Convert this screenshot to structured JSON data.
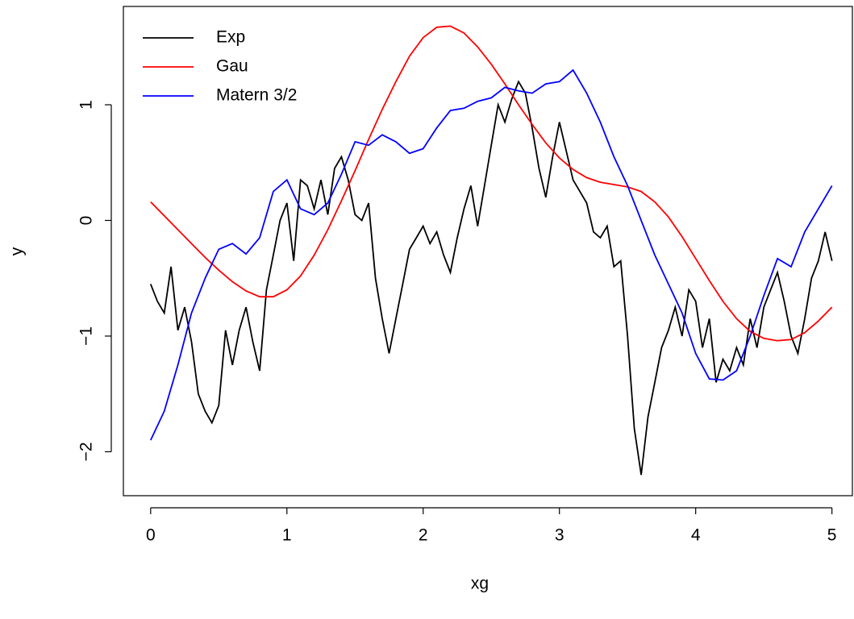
{
  "chart_data": {
    "type": "line",
    "x_label": "xg",
    "y_label": "y",
    "xlim": [
      -0.2,
      5.15
    ],
    "ylim": [
      -2.38,
      1.85
    ],
    "xticks": [
      0,
      1,
      2,
      3,
      4,
      5
    ],
    "yticks": [
      {
        "value": -2,
        "label": "−2"
      },
      {
        "value": -1,
        "label": "−1"
      },
      0,
      1
    ],
    "legend": "top-left",
    "series": [
      {
        "name": "Exp",
        "color": "#000000",
        "x": [
          0,
          0.05,
          0.1,
          0.15,
          0.2,
          0.25,
          0.3,
          0.35,
          0.4,
          0.45,
          0.5,
          0.55,
          0.6,
          0.65,
          0.7,
          0.75,
          0.8,
          0.85,
          0.9,
          0.95,
          1,
          1.05,
          1.1,
          1.15,
          1.2,
          1.25,
          1.3,
          1.35,
          1.4,
          1.45,
          1.5,
          1.55,
          1.6,
          1.65,
          1.7,
          1.75,
          1.8,
          1.85,
          1.9,
          1.95,
          2,
          2.05,
          2.1,
          2.15,
          2.2,
          2.25,
          2.3,
          2.35,
          2.4,
          2.45,
          2.5,
          2.55,
          2.6,
          2.65,
          2.7,
          2.75,
          2.8,
          2.85,
          2.9,
          2.95,
          3,
          3.05,
          3.1,
          3.15,
          3.2,
          3.25,
          3.3,
          3.35,
          3.4,
          3.45,
          3.5,
          3.55,
          3.6,
          3.65,
          3.7,
          3.75,
          3.8,
          3.85,
          3.9,
          3.95,
          4,
          4.05,
          4.1,
          4.15,
          4.2,
          4.25,
          4.3,
          4.35,
          4.4,
          4.45,
          4.5,
          4.55,
          4.6,
          4.65,
          4.7,
          4.75,
          4.8,
          4.85,
          4.9,
          4.95,
          5
        ],
        "values": [
          -0.55,
          -0.7,
          -0.8,
          -0.4,
          -0.95,
          -0.75,
          -1.05,
          -1.5,
          -1.65,
          -1.75,
          -1.6,
          -0.95,
          -1.25,
          -0.95,
          -0.75,
          -1.05,
          -1.3,
          -0.6,
          -0.3,
          0,
          0.15,
          -0.35,
          0.35,
          0.3,
          0.1,
          0.35,
          0.05,
          0.45,
          0.55,
          0.35,
          0.05,
          0,
          0.15,
          -0.5,
          -0.85,
          -1.15,
          -0.85,
          -0.55,
          -0.25,
          -0.15,
          -0.05,
          -0.2,
          -0.1,
          -0.3,
          -0.45,
          -0.15,
          0.1,
          0.3,
          -0.05,
          0.3,
          0.65,
          1,
          0.85,
          1.05,
          1.2,
          1.1,
          0.8,
          0.45,
          0.2,
          0.55,
          0.85,
          0.6,
          0.35,
          0.25,
          0.15,
          -0.1,
          -0.15,
          -0.05,
          -0.4,
          -0.35,
          -1,
          -1.8,
          -2.2,
          -1.7,
          -1.4,
          -1.1,
          -0.95,
          -0.75,
          -1,
          -0.6,
          -0.7,
          -1.1,
          -0.85,
          -1.4,
          -1.2,
          -1.3,
          -1.1,
          -1.25,
          -0.85,
          -1.1,
          -0.75,
          -0.6,
          -0.45,
          -0.7,
          -1,
          -1.15,
          -0.85,
          -0.5,
          -0.35,
          -0.1,
          -0.35
        ]
      },
      {
        "name": "Gau",
        "color": "#ff0000",
        "x": [
          0,
          0.1,
          0.2,
          0.3,
          0.4,
          0.5,
          0.6,
          0.7,
          0.8,
          0.9,
          1,
          1.1,
          1.2,
          1.3,
          1.4,
          1.5,
          1.6,
          1.7,
          1.8,
          1.9,
          2,
          2.1,
          2.2,
          2.3,
          2.4,
          2.5,
          2.6,
          2.7,
          2.8,
          2.9,
          3,
          3.1,
          3.2,
          3.3,
          3.4,
          3.5,
          3.6,
          3.7,
          3.8,
          3.9,
          4,
          4.1,
          4.2,
          4.3,
          4.4,
          4.5,
          4.6,
          4.7,
          4.8,
          4.9,
          5
        ],
        "values": [
          0.16,
          0.04,
          -0.08,
          -0.2,
          -0.32,
          -0.43,
          -0.53,
          -0.61,
          -0.66,
          -0.66,
          -0.6,
          -0.48,
          -0.3,
          -0.08,
          0.17,
          0.43,
          0.7,
          0.96,
          1.2,
          1.42,
          1.58,
          1.67,
          1.68,
          1.62,
          1.5,
          1.35,
          1.18,
          1,
          0.83,
          0.67,
          0.54,
          0.44,
          0.37,
          0.33,
          0.31,
          0.29,
          0.25,
          0.16,
          0.03,
          -0.14,
          -0.33,
          -0.52,
          -0.7,
          -0.85,
          -0.96,
          -1.02,
          -1.04,
          -1.03,
          -0.97,
          -0.87,
          -0.75
        ]
      },
      {
        "name": "Matern 3/2",
        "color": "#0000ff",
        "x": [
          0,
          0.1,
          0.2,
          0.3,
          0.4,
          0.5,
          0.6,
          0.7,
          0.8,
          0.9,
          1,
          1.1,
          1.2,
          1.3,
          1.4,
          1.5,
          1.6,
          1.7,
          1.8,
          1.9,
          2,
          2.1,
          2.2,
          2.3,
          2.4,
          2.5,
          2.6,
          2.7,
          2.8,
          2.9,
          3,
          3.1,
          3.2,
          3.3,
          3.4,
          3.5,
          3.6,
          3.7,
          3.8,
          3.9,
          4,
          4.1,
          4.2,
          4.3,
          4.4,
          4.5,
          4.6,
          4.7,
          4.8,
          4.9,
          5
        ],
        "values": [
          -1.9,
          -1.65,
          -1.25,
          -0.8,
          -0.5,
          -0.25,
          -0.2,
          -0.29,
          -0.15,
          0.25,
          0.35,
          0.1,
          0.05,
          0.15,
          0.4,
          0.68,
          0.65,
          0.74,
          0.68,
          0.58,
          0.62,
          0.8,
          0.95,
          0.97,
          1.03,
          1.06,
          1.15,
          1.12,
          1.1,
          1.18,
          1.2,
          1.3,
          1.1,
          0.85,
          0.55,
          0.3,
          0,
          -0.3,
          -0.55,
          -0.8,
          -1.15,
          -1.37,
          -1.38,
          -1.3,
          -1,
          -0.65,
          -0.33,
          -0.4,
          -0.1,
          0.1,
          0.3
        ]
      }
    ]
  }
}
